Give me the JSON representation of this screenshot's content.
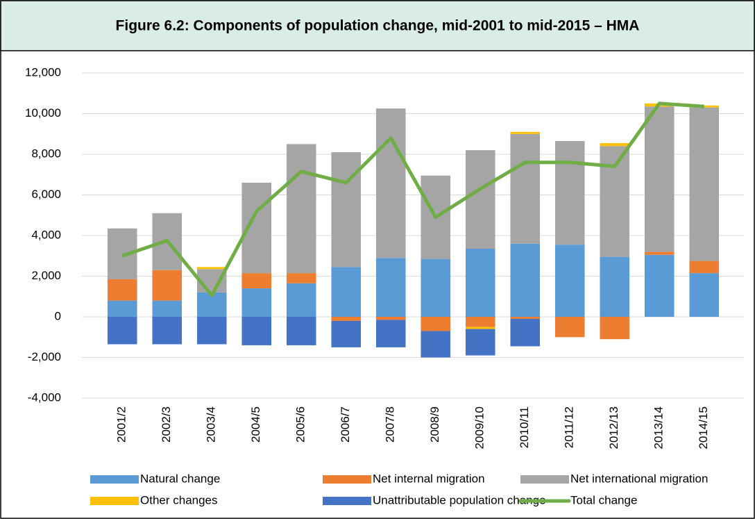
{
  "chart_data": {
    "type": "bar",
    "stacked": true,
    "title": "Figure 6.2: Components of population change, mid-2001 to mid-2015 – HMA",
    "categories": [
      "2001/2",
      "2002/3",
      "2003/4",
      "2004/5",
      "2005/6",
      "2006/7",
      "2007/8",
      "2008/9",
      "2009/10",
      "2010/11",
      "2011/12",
      "2012/13",
      "2013/14",
      "2014/15"
    ],
    "series": [
      {
        "name": "Natural change",
        "color": "#5b9bd5",
        "values": [
          800,
          800,
          1200,
          1400,
          1650,
          2450,
          2900,
          2850,
          3350,
          3600,
          3550,
          2950,
          3050,
          2150
        ]
      },
      {
        "name": "Net internal migration",
        "color": "#ed7d31",
        "values": [
          1050,
          1500,
          0,
          750,
          500,
          -200,
          -150,
          -700,
          -500,
          -100,
          -1000,
          -1100,
          150,
          600
        ]
      },
      {
        "name": "Net international migration",
        "color": "#a5a5a5",
        "values": [
          2500,
          2800,
          1150,
          4450,
          6350,
          5650,
          7350,
          4100,
          4850,
          5400,
          5100,
          5450,
          7150,
          7550
        ]
      },
      {
        "name": "Other changes",
        "color": "#ffc000",
        "values": [
          0,
          0,
          100,
          0,
          0,
          0,
          0,
          0,
          -100,
          100,
          0,
          150,
          150,
          100
        ]
      },
      {
        "name": "Unattributable population change",
        "color": "#4472c4",
        "values": [
          -1350,
          -1350,
          -1350,
          -1400,
          -1400,
          -1300,
          -1350,
          -1300,
          -1300,
          -1350,
          0,
          0,
          0,
          0
        ]
      },
      {
        "name": "Total change",
        "color": "#70ad47",
        "type": "line",
        "values": [
          3000,
          3750,
          1050,
          5200,
          7150,
          6600,
          8800,
          4900,
          6300,
          7600,
          7600,
          7400,
          10500,
          10350
        ]
      }
    ],
    "ylim": [
      -4000,
      12000
    ],
    "yticks": [
      {
        "value": -4000,
        "label": "-4,000"
      },
      {
        "value": -2000,
        "label": "-2,000"
      },
      0,
      {
        "value": 2000,
        "label": "2,000"
      },
      {
        "value": 4000,
        "label": "4,000"
      },
      {
        "value": 6000,
        "label": "6,000"
      },
      {
        "value": 8000,
        "label": "8,000"
      },
      {
        "value": 10000,
        "label": "10,000"
      },
      {
        "value": 12000,
        "label": "12,000"
      }
    ],
    "grid": true
  }
}
